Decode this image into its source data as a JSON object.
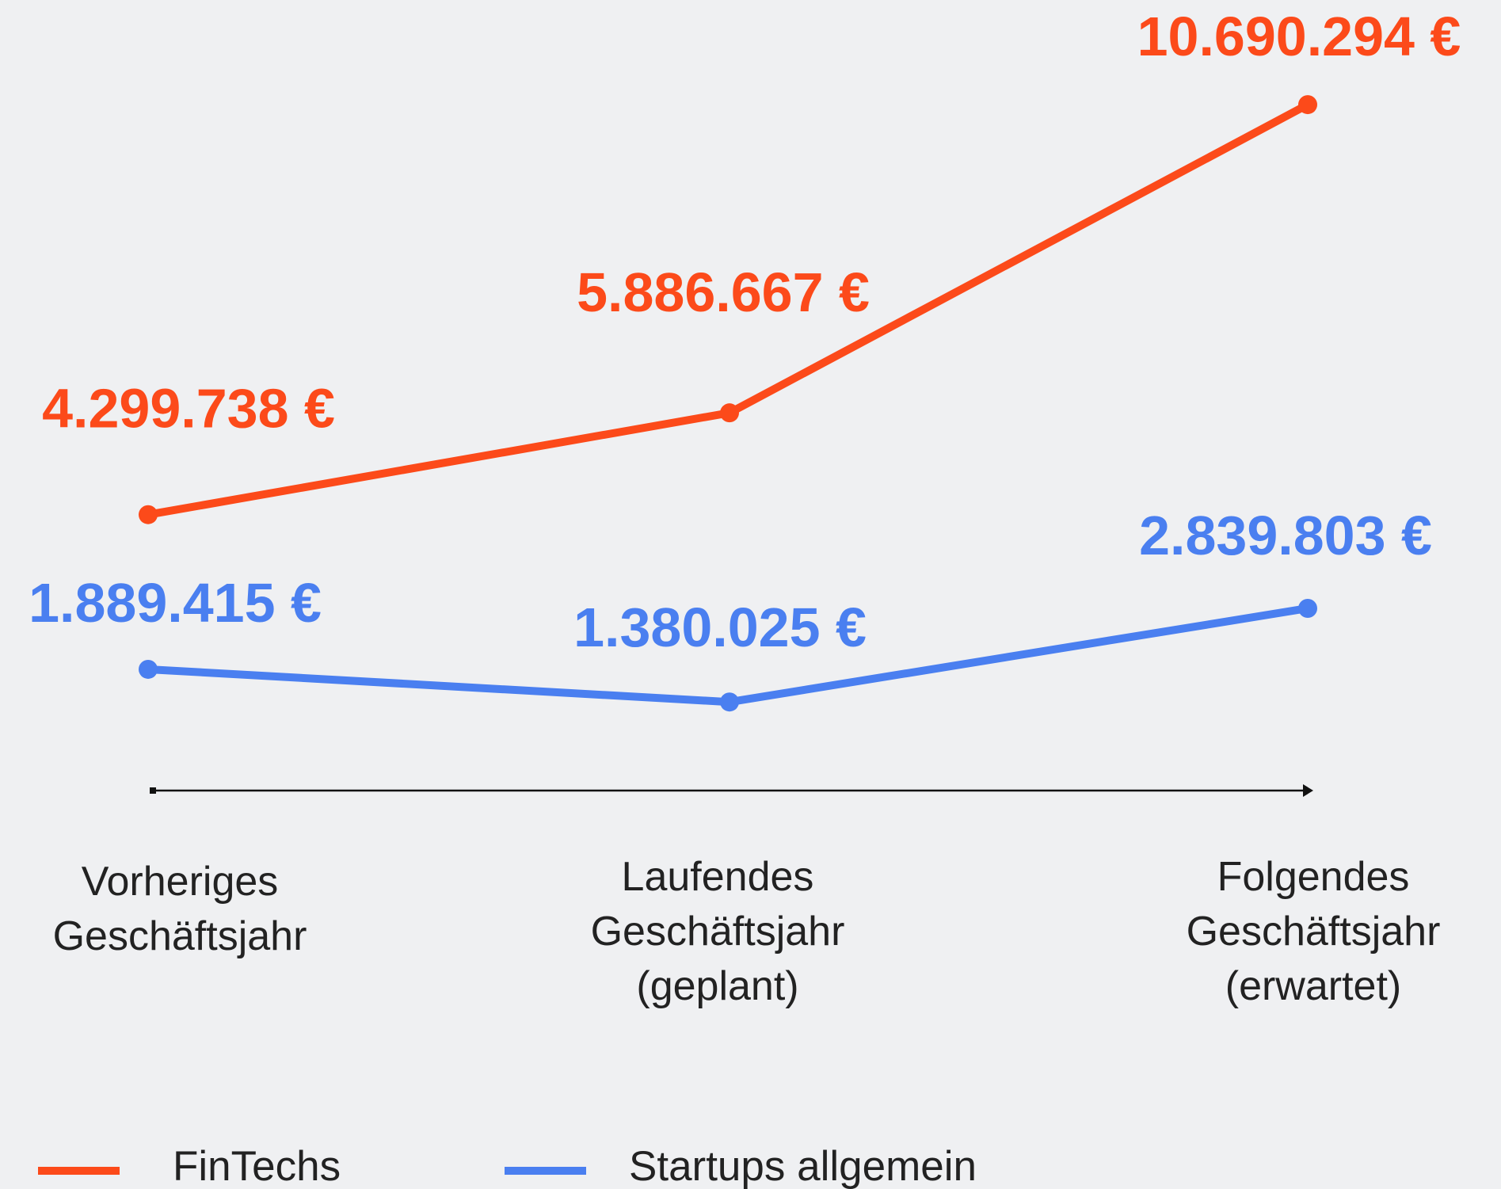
{
  "chart_data": {
    "type": "line",
    "categories": [
      "Vorheriges\nGeschäftsjahr",
      "Laufendes\nGeschäftsjahr\n(geplant)",
      "Folgendes\nGeschäftsjahr\n(erwartet)"
    ],
    "series": [
      {
        "name": "FinTechs",
        "color": "#fc4a1a",
        "values": [
          4299738,
          5886667,
          10690294
        ],
        "value_labels": [
          "4.299.738 €",
          "5.886.667 €",
          "10.690.294 €"
        ]
      },
      {
        "name": "Startups allgemein",
        "color": "#4a7ff0",
        "values": [
          1889415,
          1380025,
          2839803
        ],
        "value_labels": [
          "1.889.415 €",
          "1.380.025 €",
          "2.839.803 €"
        ]
      }
    ],
    "ylim": [
      0,
      12000000
    ]
  }
}
